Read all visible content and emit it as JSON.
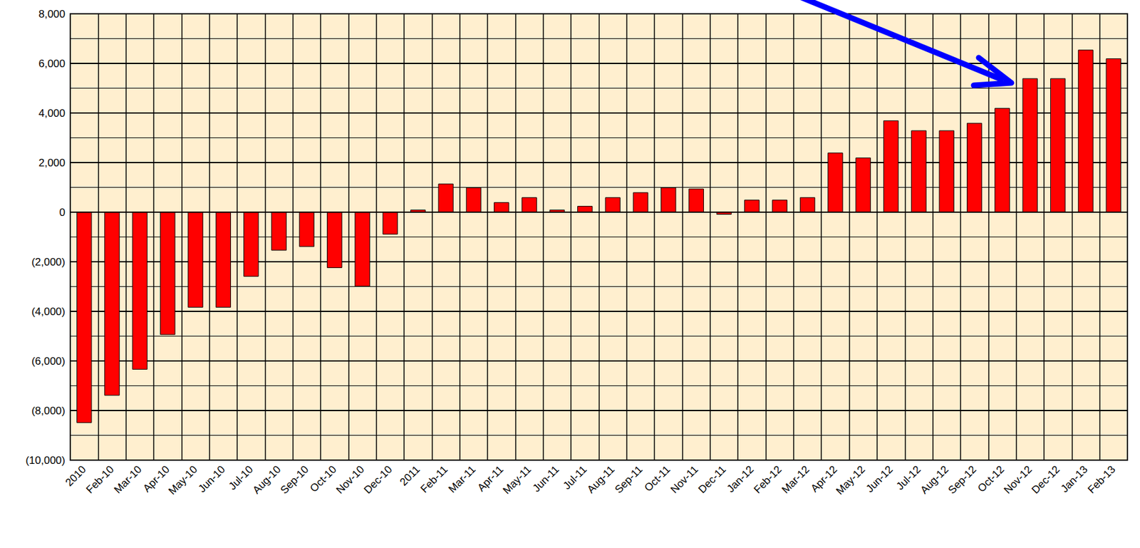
{
  "chart_data": {
    "type": "bar",
    "categories": [
      "2010",
      "Feb-10",
      "Mar-10",
      "Apr-10",
      "May-10",
      "Jun-10",
      "Jul-10",
      "Aug-10",
      "Sep-10",
      "Oct-10",
      "Nov-10",
      "Dec-10",
      "2011",
      "Feb-11",
      "Mar-11",
      "Apr-11",
      "May-11",
      "Jun-11",
      "Jul-11",
      "Aug-11",
      "Sep-11",
      "Oct-11",
      "Nov-11",
      "Dec-11",
      "Jan-12",
      "Feb-12",
      "Mar-12",
      "Apr-12",
      "May-12",
      "Jun-12",
      "Jul-12",
      "Aug-12",
      "Sep-12",
      "Oct-12",
      "Nov-12",
      "Dec-12",
      "Jan-13",
      "Feb-13"
    ],
    "values": [
      -8500,
      -7400,
      -6350,
      -4950,
      -3850,
      -3850,
      -2600,
      -1550,
      -1400,
      -2250,
      -3000,
      -900,
      100,
      1150,
      1000,
      400,
      600,
      100,
      250,
      600,
      800,
      1000,
      950,
      -100,
      500,
      500,
      600,
      2400,
      2200,
      3700,
      3300,
      3300,
      3600,
      4200,
      5400,
      5400,
      6550,
      6200
    ],
    "color": "#ff0000",
    "ylim": [
      -10000,
      8000
    ],
    "yticks": [
      {
        "value": -10000,
        "label": "(10,000)"
      },
      {
        "value": -8000,
        "label": "(8,000)"
      },
      {
        "value": -6000,
        "label": "(6,000)"
      },
      {
        "value": -4000,
        "label": "(4,000)"
      },
      {
        "value": -2000,
        "label": "(2,000)"
      },
      0,
      {
        "value": 2000,
        "label": "2,000"
      },
      {
        "value": 4000,
        "label": "4,000"
      },
      {
        "value": 6000,
        "label": "6,000"
      },
      {
        "value": 8000,
        "label": "8,000"
      }
    ],
    "grid": true
  }
}
